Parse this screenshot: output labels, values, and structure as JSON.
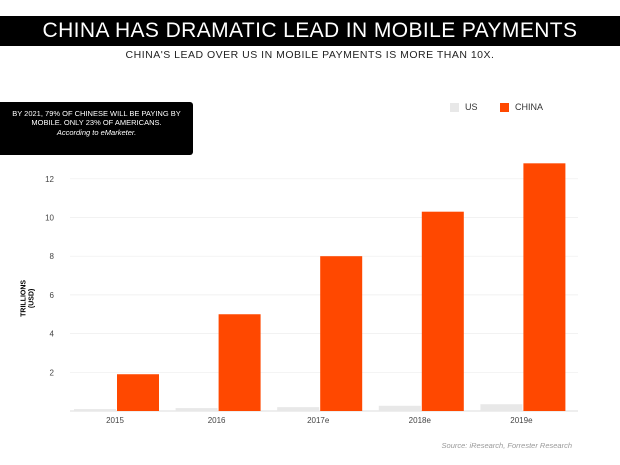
{
  "header": {
    "title": "CHINA HAS DRAMATIC LEAD IN MOBILE PAYMENTS",
    "subtitle": "CHINA'S LEAD OVER US IN MOBILE PAYMENTS IS MORE THAN 10X."
  },
  "note": {
    "text": "BY 2021, 79% OF CHINESE WILL BE PAYING BY MOBILE. ONLY 23% OF AMERICANS.",
    "source": "According to eMarketer."
  },
  "source_text": "Source: iResearch, Forrester Research",
  "chart_data": {
    "type": "bar",
    "title": "CHINA HAS DRAMATIC LEAD IN MOBILE PAYMENTS",
    "subtitle": "CHINA'S LEAD OVER US IN MOBILE PAYMENTS IS MORE THAN 10X.",
    "xlabel": "",
    "ylabel": "TRILLIONS (USD)",
    "ylabel_lines": [
      "TRILLIONS",
      "(USD)"
    ],
    "categories": [
      "2015",
      "2016",
      "2017e",
      "2018e",
      "2019e"
    ],
    "series": [
      {
        "name": "US",
        "color": "#e8e8e8",
        "values": [
          0.1,
          0.15,
          0.2,
          0.27,
          0.35
        ]
      },
      {
        "name": "CHINA",
        "color": "#ff4800",
        "values": [
          1.9,
          5.0,
          8.0,
          10.3,
          12.8
        ]
      }
    ],
    "yticks": [
      2,
      4,
      6,
      8,
      10,
      12
    ],
    "ylim": [
      0,
      13
    ],
    "grid": true,
    "legend_position": "top-right"
  }
}
